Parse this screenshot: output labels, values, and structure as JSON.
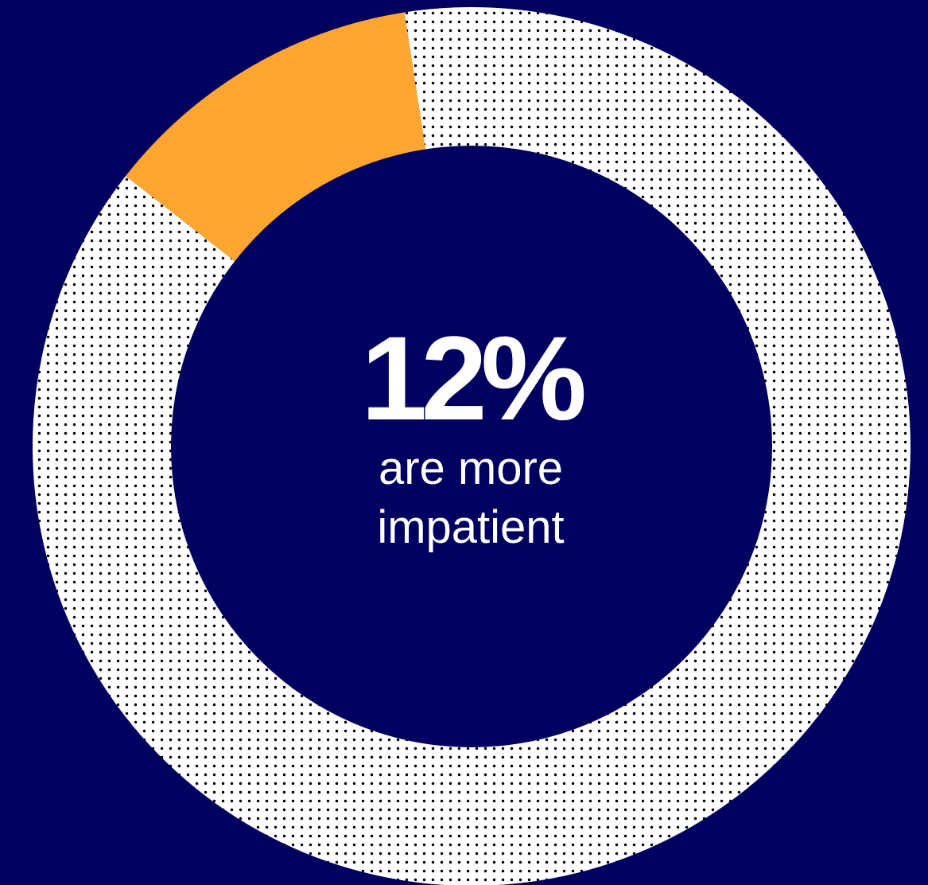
{
  "colors": {
    "background": "#000060",
    "highlight": "#ffa631",
    "remainder_fill": "#ffffff",
    "remainder_dots": "#000000",
    "text": "#ffffff"
  },
  "chart_data": {
    "type": "pie",
    "title": "",
    "center_value": "12%",
    "center_caption_line1": "are more",
    "center_caption_line2": "impatient",
    "slices": [
      {
        "label": "",
        "value": 12,
        "color": "#ffa631",
        "pattern": "solid"
      },
      {
        "label": "",
        "value": 88,
        "color": "#ffffff",
        "pattern": "dotted"
      }
    ],
    "start_angle_deg": -52,
    "direction": "clockwise",
    "legend": "none"
  }
}
